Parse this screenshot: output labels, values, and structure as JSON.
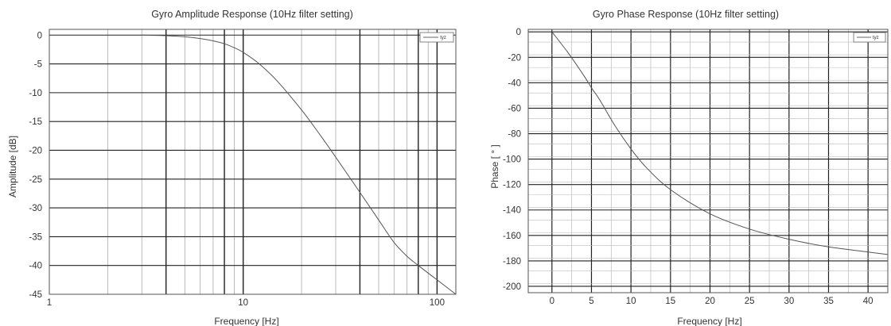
{
  "chart_data": [
    {
      "type": "line",
      "title": "Gyro Amplitude Response (10Hz filter setting)",
      "xlabel": "Frequency [Hz]",
      "ylabel": "Amplitude [dB]",
      "xscale": "log",
      "xlim": [
        1,
        125
      ],
      "ylim": [
        -45,
        1
      ],
      "grid": true,
      "legend": "top-right",
      "xticks": [
        "1",
        "10",
        "100"
      ],
      "yticks": [
        "0",
        "-5",
        "-10",
        "-15",
        "-20",
        "-25",
        "-30",
        "-35",
        "-40",
        "-45"
      ],
      "series": [
        {
          "name": "tyz",
          "color": "#555555",
          "x": [
            3,
            4,
            5,
            6,
            7,
            8,
            9,
            10,
            12,
            15,
            20,
            25,
            30,
            40,
            50,
            60,
            70,
            80,
            100,
            125
          ],
          "y": [
            0,
            -0.1,
            -0.3,
            -0.6,
            -1.0,
            -1.5,
            -2.2,
            -3.0,
            -4.9,
            -8.0,
            -13.0,
            -17.4,
            -21.2,
            -27.3,
            -32.1,
            -36.0,
            -38.4,
            -40.0,
            -42.5,
            -45.0
          ]
        }
      ]
    },
    {
      "type": "line",
      "title": "Gyro Phase Response (10Hz filter setting)",
      "xlabel": "Frequency [Hz]",
      "ylabel": "Phase [ ° ]",
      "xlim": [
        -3,
        42.5
      ],
      "ylim": [
        -205,
        2
      ],
      "grid": true,
      "legend": "top-right",
      "xticks": [
        "0",
        "5",
        "10",
        "15",
        "20",
        "25",
        "30",
        "35",
        "40"
      ],
      "yticks": [
        "0",
        "-20",
        "-40",
        "-60",
        "-80",
        "-100",
        "-120",
        "-140",
        "-160",
        "-180",
        "-200"
      ],
      "series": [
        {
          "name": "tyz",
          "color": "#555555",
          "x": [
            0,
            2,
            4,
            5,
            6,
            8,
            10,
            12,
            15,
            20,
            25,
            30,
            35,
            40,
            42.5
          ],
          "y": [
            0,
            -16,
            -34,
            -44,
            -53,
            -74,
            -92,
            -107,
            -124,
            -143,
            -155,
            -163,
            -169,
            -173,
            -175
          ]
        }
      ]
    }
  ]
}
